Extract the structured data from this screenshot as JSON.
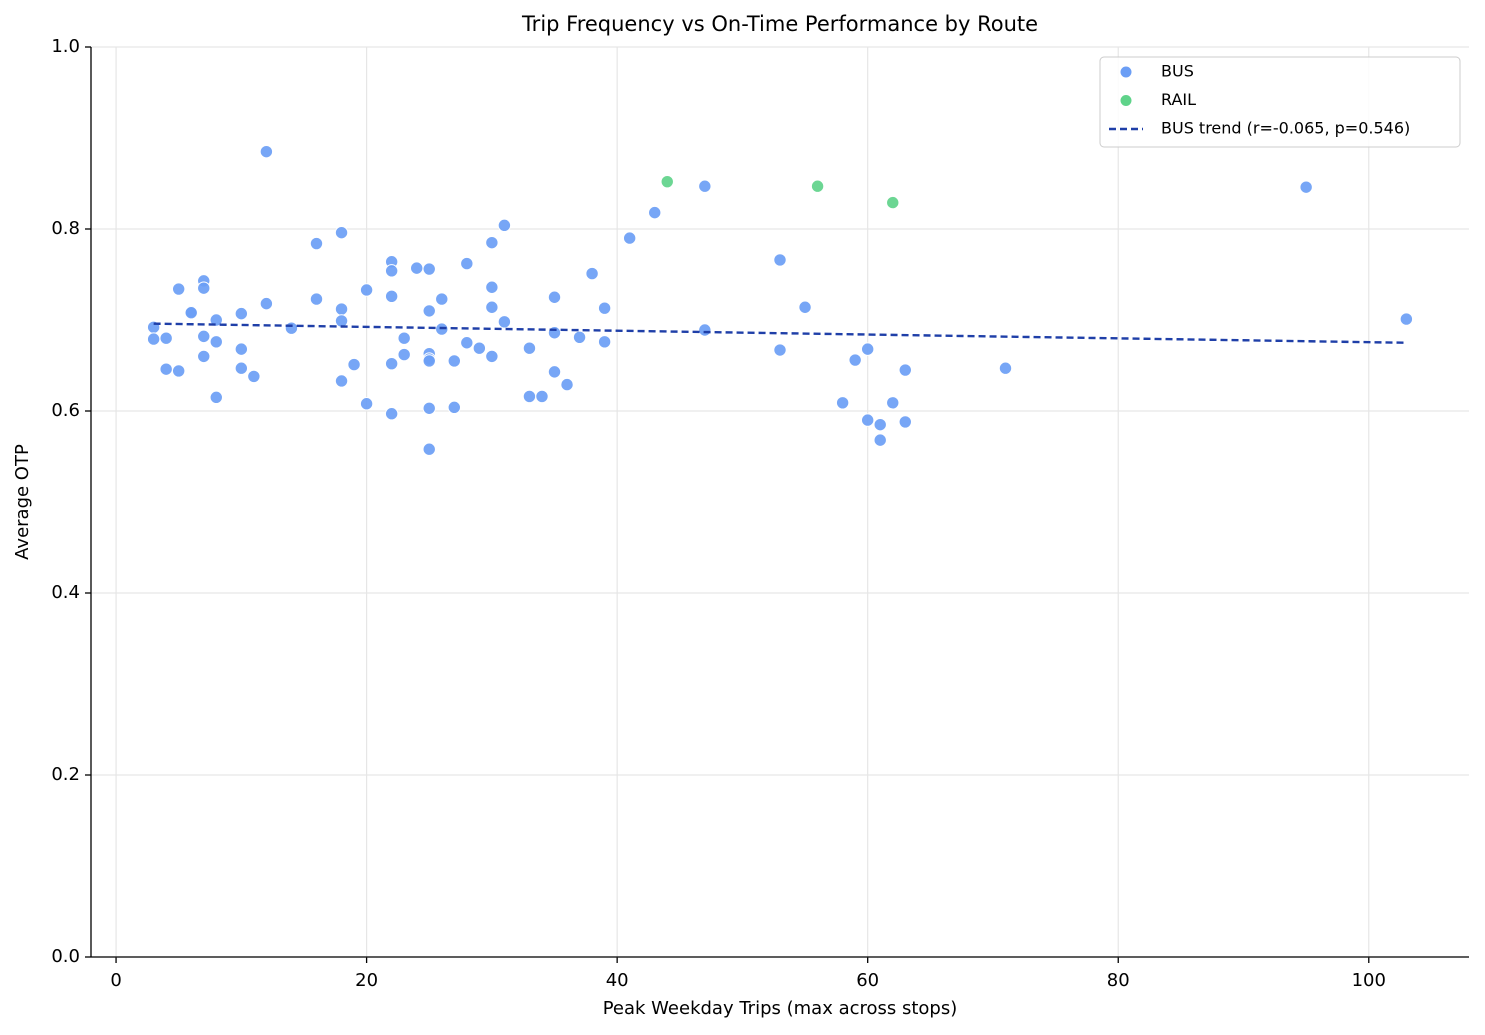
{
  "chart_data": {
    "type": "scatter",
    "title": "Trip Frequency vs On-Time Performance by Route",
    "x_label": "Peak Weekday Trips (max across stops)",
    "y_label": "Average OTP",
    "xlim": [
      -2,
      108
    ],
    "ylim": [
      0,
      1
    ],
    "xticks": [
      0,
      20,
      40,
      60,
      80,
      100
    ],
    "yticks": [
      {
        "value": 0,
        "label": "0.0"
      },
      0.2,
      0.4,
      0.6,
      0.8,
      {
        "value": 1,
        "label": "1.0"
      }
    ],
    "grid": true,
    "legend": "upper right",
    "series": [
      {
        "name": "BUS",
        "color": "#6b9ef5",
        "x": [
          3,
          3,
          4,
          4,
          5,
          5,
          6,
          6,
          7,
          7,
          7,
          7,
          8,
          8,
          8,
          10,
          10,
          10,
          11,
          12,
          12,
          14,
          16,
          16,
          18,
          18,
          18,
          18,
          19,
          20,
          20,
          22,
          22,
          22,
          22,
          22,
          23,
          23,
          24,
          25,
          25,
          25,
          25,
          25,
          25,
          25,
          26,
          26,
          27,
          27,
          28,
          28,
          29,
          30,
          30,
          30,
          30,
          31,
          31,
          33,
          33,
          34,
          35,
          35,
          35,
          36,
          37,
          38,
          39,
          39,
          41,
          43,
          47,
          47,
          53,
          53,
          55,
          58,
          59,
          60,
          60,
          61,
          61,
          62,
          63,
          63,
          71,
          95,
          103
        ],
        "values": [
          0.692,
          0.679,
          0.68,
          0.646,
          0.734,
          0.644,
          0.709,
          0.708,
          0.743,
          0.735,
          0.682,
          0.66,
          0.7,
          0.676,
          0.615,
          0.707,
          0.668,
          0.647,
          0.638,
          0.885,
          0.718,
          0.691,
          0.784,
          0.723,
          0.796,
          0.712,
          0.699,
          0.633,
          0.651,
          0.733,
          0.608,
          0.764,
          0.754,
          0.726,
          0.652,
          0.597,
          0.68,
          0.662,
          0.757,
          0.756,
          0.71,
          0.663,
          0.657,
          0.655,
          0.603,
          0.558,
          0.723,
          0.69,
          0.655,
          0.604,
          0.762,
          0.675,
          0.669,
          0.785,
          0.736,
          0.714,
          0.66,
          0.804,
          0.698,
          0.669,
          0.616,
          0.616,
          0.725,
          0.686,
          0.643,
          0.629,
          0.681,
          0.751,
          0.713,
          0.676,
          0.79,
          0.818,
          0.847,
          0.689,
          0.766,
          0.667,
          0.714,
          0.609,
          0.656,
          0.668,
          0.59,
          0.585,
          0.568,
          0.609,
          0.645,
          0.588,
          0.647,
          0.846,
          0.701
        ]
      },
      {
        "name": "RAIL",
        "color": "#5fd38a",
        "x": [
          44,
          56,
          62
        ],
        "values": [
          0.852,
          0.847,
          0.829
        ]
      },
      {
        "name": "BUS trend (r=-0.065, p=0.546)",
        "type": "line",
        "dashed": true,
        "color": "#1f3fa8",
        "x": [
          3,
          103
        ],
        "values": [
          0.696,
          0.675
        ]
      }
    ]
  }
}
